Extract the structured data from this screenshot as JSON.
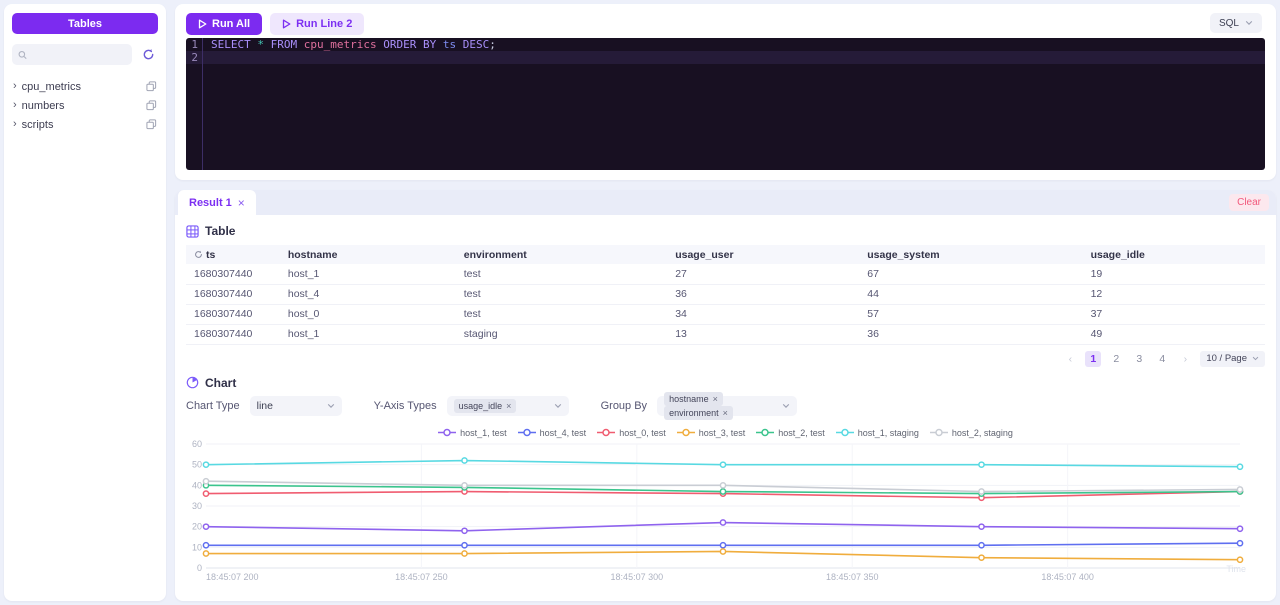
{
  "window": {
    "sql_selector": "SQL",
    "accent": "#7c2bf0"
  },
  "sidebar": {
    "tables_button": "Tables",
    "search_placeholder": "",
    "items": [
      {
        "label": "cpu_metrics"
      },
      {
        "label": "numbers"
      },
      {
        "label": "scripts"
      }
    ]
  },
  "toolbar": {
    "run_all": "Run All",
    "run_line2": "Run Line 2"
  },
  "editor": {
    "active_line": 2,
    "lines": [
      {
        "n": "1",
        "tokens": [
          {
            "c": "kw",
            "t": "SELECT"
          },
          {
            "c": "plain",
            "t": " "
          },
          {
            "c": "op",
            "t": "*"
          },
          {
            "c": "plain",
            "t": " "
          },
          {
            "c": "kw",
            "t": "FROM"
          },
          {
            "c": "plain",
            "t": " "
          },
          {
            "c": "entity",
            "t": "cpu_metrics"
          },
          {
            "c": "plain",
            "t": " "
          },
          {
            "c": "kw",
            "t": "ORDER BY"
          },
          {
            "c": "plain",
            "t": " "
          },
          {
            "c": "var",
            "t": "ts"
          },
          {
            "c": "plain",
            "t": " "
          },
          {
            "c": "kw",
            "t": "DESC"
          },
          {
            "c": "punc",
            "t": ";"
          }
        ]
      },
      {
        "n": "2",
        "tokens": []
      }
    ]
  },
  "results": {
    "tab_label": "Result 1",
    "tab_close": "×",
    "clear_button": "Clear",
    "table_section": "Table",
    "columns": [
      "ts",
      "hostname",
      "environment",
      "usage_user",
      "usage_system",
      "usage_idle"
    ],
    "rows": [
      [
        "1680307440",
        "host_1",
        "test",
        "27",
        "67",
        "19"
      ],
      [
        "1680307440",
        "host_4",
        "test",
        "36",
        "44",
        "12"
      ],
      [
        "1680307440",
        "host_0",
        "test",
        "34",
        "57",
        "37"
      ],
      [
        "1680307440",
        "host_1",
        "staging",
        "13",
        "36",
        "49"
      ]
    ],
    "pagination": {
      "prev": "‹",
      "next": "›",
      "pages": [
        "1",
        "2",
        "3",
        "4"
      ],
      "active": "1",
      "page_size": "10 / Page"
    }
  },
  "chart_controls": {
    "section": "Chart",
    "chart_type_label": "Chart Type",
    "chart_type_value": "line",
    "y_axis_label": "Y-Axis Types",
    "y_axis_tags": [
      "usage_idle"
    ],
    "group_by_label": "Group By",
    "group_by_tags": [
      "hostname",
      "environment"
    ]
  },
  "chart_data": {
    "type": "line",
    "title": "",
    "xlabel": "Time",
    "ylabel": "",
    "ylim": [
      0,
      60
    ],
    "y_ticks": [
      0,
      10,
      20,
      30,
      40,
      50,
      60
    ],
    "x_tick_labels": [
      "18:45:07 200",
      "18:45:07 250",
      "18:45:07 300",
      "18:45:07 350",
      "18:45:07 400"
    ],
    "grid": true,
    "legend_position": "top",
    "series": [
      {
        "name": "host_1, test",
        "color": "#8f63ee",
        "values": [
          20,
          18,
          22,
          20,
          19
        ]
      },
      {
        "name": "host_4, test",
        "color": "#5f6ff0",
        "values": [
          11,
          11,
          11,
          11,
          12
        ]
      },
      {
        "name": "host_0, test",
        "color": "#f05c70",
        "values": [
          36,
          37,
          36,
          34,
          37
        ]
      },
      {
        "name": "host_3, test",
        "color": "#f0ad3d",
        "values": [
          7,
          7,
          8,
          5,
          4
        ]
      },
      {
        "name": "host_2, test",
        "color": "#3bc48d",
        "values": [
          40,
          39,
          37,
          36,
          37
        ]
      },
      {
        "name": "host_1, staging",
        "color": "#58d9e2",
        "values": [
          50,
          52,
          50,
          50,
          49
        ]
      },
      {
        "name": "host_2, staging",
        "color": "#c9cdd4",
        "values": [
          42,
          40,
          40,
          37,
          38
        ]
      }
    ]
  }
}
